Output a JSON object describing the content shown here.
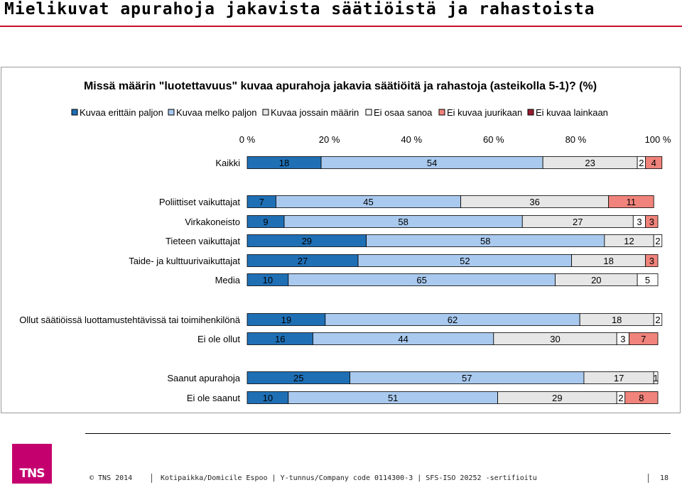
{
  "page": {
    "title": "Mielikuvat apurahoja jakavista säätiöistä ja rahastoista",
    "footer_copyright": "© TNS 2014",
    "footer_address": "Kotipaikka/Domicile Espoo | Y-tunnus/Company code 0114300-3 | SFS-ISO 20252 -sertifioitu",
    "page_number": "18",
    "logo_text": "TNS",
    "accent_color": "#c8102e",
    "logo_color": "#c4006f"
  },
  "chart_data": {
    "type": "bar",
    "orientation": "horizontal",
    "stacked": "percent",
    "title": "Missä määrin \"luotettavuus\" kuvaa apurahoja jakavia säätiöitä ja rahastoja (asteikolla 5-1)? (%)",
    "xlim": [
      0,
      100
    ],
    "x_ticks": [
      "0 %",
      "20 %",
      "40 %",
      "60 %",
      "80 %",
      "100 %"
    ],
    "legend_position": "top",
    "grid": false,
    "categories": [
      "Kaikki",
      "Poliittiset vaikuttajat",
      "Virkakoneisto",
      "Tieteen vaikuttajat",
      "Taide- ja kulttuurivaikuttajat",
      "Media",
      "Ollut säätiöissä luottamustehtävissä tai toimihenkilönä",
      "Ei ole ollut",
      "Saanut apurahoja",
      "Ei ole saanut"
    ],
    "series": [
      {
        "name": "Kuvaa erittäin paljon",
        "color": "#1f6fb5",
        "values": [
          18,
          7,
          9,
          29,
          27,
          10,
          19,
          16,
          25,
          10
        ]
      },
      {
        "name": "Kuvaa melko paljon",
        "color": "#a9c9ee",
        "values": [
          54,
          45,
          58,
          58,
          52,
          65,
          62,
          44,
          57,
          51
        ]
      },
      {
        "name": "Kuvaa jossain määrin",
        "color": "#e6e6e6",
        "values": [
          23,
          36,
          27,
          12,
          18,
          20,
          18,
          30,
          17,
          29
        ]
      },
      {
        "name": "Ei osaa sanoa",
        "color": "#ffffff",
        "values": [
          2,
          0,
          3,
          2,
          0,
          5,
          2,
          3,
          1,
          2
        ]
      },
      {
        "name": "Ei kuvaa juurikaan",
        "color": "#f0837b",
        "values": [
          4,
          11,
          3,
          0,
          3,
          0,
          0,
          7,
          0,
          8
        ]
      },
      {
        "name": "Ei kuvaa lainkaan",
        "color": "#9b1c31",
        "values": [
          0,
          0,
          0,
          0,
          0,
          0,
          0,
          0,
          0,
          0
        ]
      }
    ]
  }
}
